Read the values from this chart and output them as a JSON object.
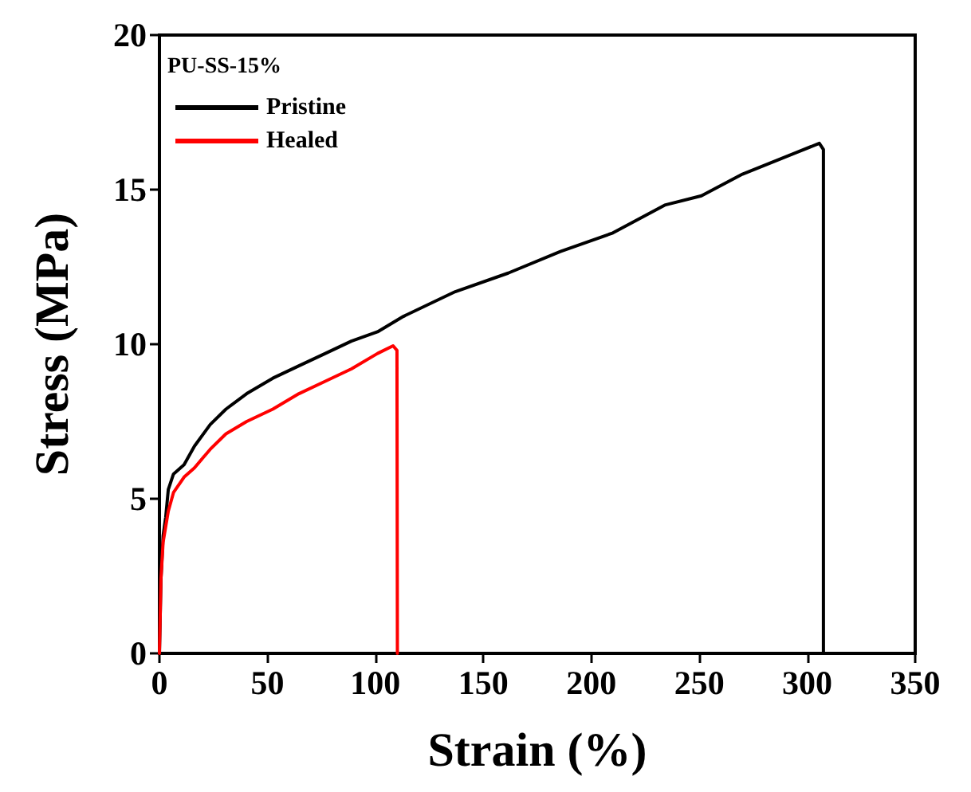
{
  "chart_data": {
    "type": "line",
    "xlabel": "Strain (%)",
    "ylabel": "Stress (MPa)",
    "legend_title": "PU-SS-15%",
    "xlim": [
      0,
      350
    ],
    "ylim": [
      0,
      20
    ],
    "xticks": [
      0,
      50,
      100,
      150,
      200,
      250,
      300,
      350
    ],
    "yticks": [
      0,
      5,
      10,
      15,
      20
    ],
    "grid": false,
    "legend": "top left",
    "marker": "none",
    "line_style": "solid",
    "series": [
      {
        "name": "Pristine",
        "color": "#000000",
        "x": [
          0,
          0.7,
          1.7,
          2.9,
          4.1,
          6.5,
          11.4,
          16.2,
          23.5,
          30.8,
          40.4,
          52.5,
          64.6,
          76.8,
          88.9,
          101,
          113,
          137,
          161.5,
          185.7,
          210,
          234,
          251,
          270,
          295,
          305.6,
          307.5,
          307.5,
          307.5
        ],
        "values": [
          0,
          2.4,
          3.8,
          4.4,
          5.3,
          5.8,
          6.1,
          6.7,
          7.4,
          7.9,
          8.4,
          8.9,
          9.3,
          9.7,
          10.1,
          10.4,
          10.9,
          11.7,
          12.3,
          13.0,
          13.6,
          14.5,
          14.8,
          15.5,
          16.2,
          16.5,
          16.3,
          13.1,
          0
        ]
      },
      {
        "name": "Healed",
        "color": "#ff0000",
        "x": [
          0,
          0.7,
          1.7,
          4.1,
          6.5,
          11.4,
          16.2,
          23.5,
          30.8,
          40.4,
          52.5,
          64.6,
          76.8,
          88.9,
          101,
          108.2,
          110,
          110.2
        ],
        "values": [
          0,
          2.4,
          3.6,
          4.6,
          5.2,
          5.7,
          6.0,
          6.6,
          7.1,
          7.5,
          7.9,
          8.4,
          8.8,
          9.2,
          9.7,
          9.95,
          9.8,
          0
        ]
      }
    ]
  }
}
